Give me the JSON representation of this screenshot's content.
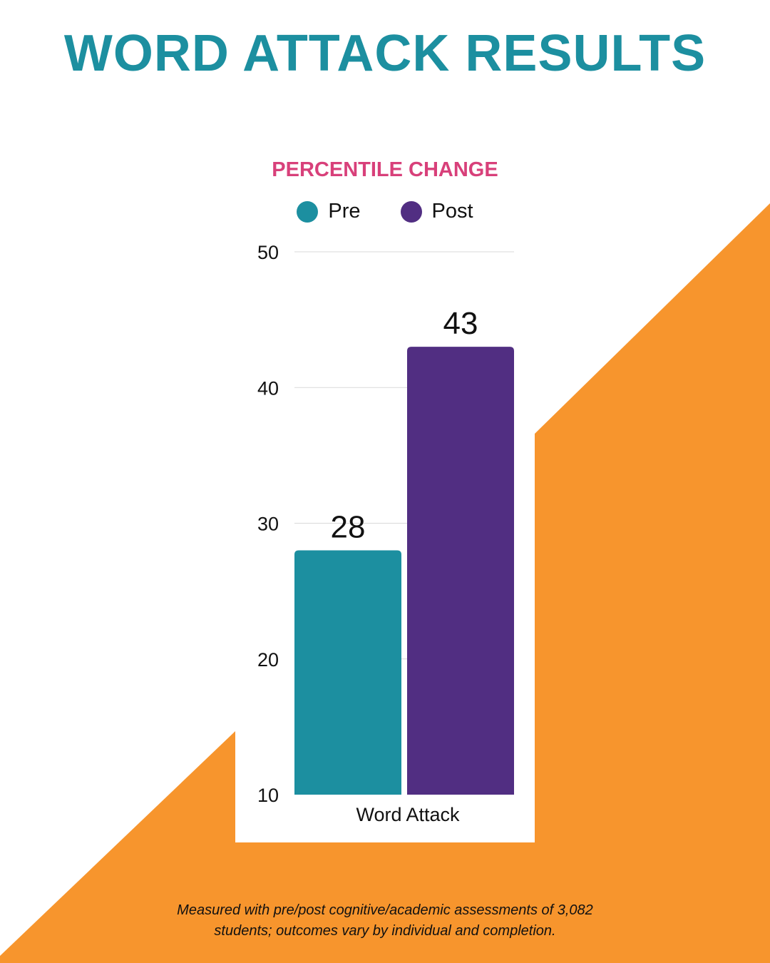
{
  "title": "WORD ATTACK RESULTS",
  "colors": {
    "title": "#1c8fa0",
    "subtitle": "#d8407a",
    "pre": "#1c8fa0",
    "post": "#512e82",
    "background_shape": "#f7952d",
    "panel": "#ffffff"
  },
  "chart_data": {
    "type": "bar",
    "title": "PERCENTILE CHANGE",
    "categories": [
      "Word Attack"
    ],
    "series": [
      {
        "name": "Pre",
        "values": [
          28
        ]
      },
      {
        "name": "Post",
        "values": [
          43
        ]
      }
    ],
    "ylim": [
      10,
      50
    ],
    "yticks": [
      10,
      20,
      30,
      40,
      50
    ],
    "grid": true,
    "legend_position": "top",
    "data_labels": true
  },
  "footnote": {
    "line1": "Measured with pre/post cognitive/academic assessments of 3,082",
    "line2": "students; outcomes vary by individual and completion."
  }
}
